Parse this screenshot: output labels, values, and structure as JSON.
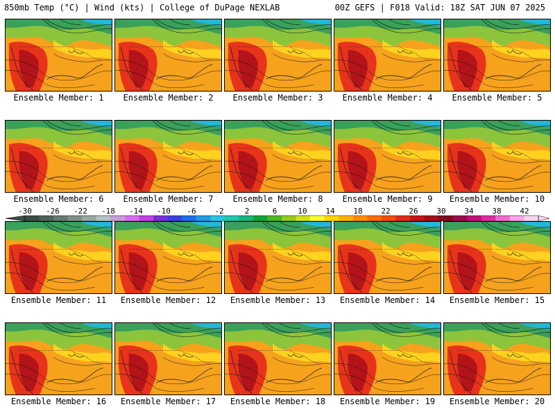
{
  "header": {
    "left": "850mb Temp (°C) | Wind (kts) | College of DuPage NEXLAB",
    "right": "00Z GEFS | F018 Valid: 18Z SAT JUN 07 2025"
  },
  "panels": [
    {
      "label": "Ensemble Member: 1"
    },
    {
      "label": "Ensemble Member: 2"
    },
    {
      "label": "Ensemble Member: 3"
    },
    {
      "label": "Ensemble Member: 4"
    },
    {
      "label": "Ensemble Member: 5"
    },
    {
      "label": "Ensemble Member: 6"
    },
    {
      "label": "Ensemble Member: 7"
    },
    {
      "label": "Ensemble Member: 8"
    },
    {
      "label": "Ensemble Member: 9"
    },
    {
      "label": "Ensemble Member: 10"
    },
    {
      "label": "Ensemble Member: 11"
    },
    {
      "label": "Ensemble Member: 12"
    },
    {
      "label": "Ensemble Member: 13"
    },
    {
      "label": "Ensemble Member: 14"
    },
    {
      "label": "Ensemble Member: 15"
    },
    {
      "label": "Ensemble Member: 16"
    },
    {
      "label": "Ensemble Member: 17"
    },
    {
      "label": "Ensemble Member: 18"
    },
    {
      "label": "Ensemble Member: 19"
    },
    {
      "label": "Ensemble Member: 20"
    }
  ],
  "colorbar": {
    "ticks": [
      "-30",
      "-26",
      "-22",
      "-18",
      "-14",
      "-10",
      "-6",
      "-2",
      "2",
      "6",
      "10",
      "14",
      "18",
      "22",
      "26",
      "30",
      "34",
      "38",
      "42"
    ],
    "colors": [
      "#3c4a41",
      "#53615a",
      "#6a7872",
      "#828e89",
      "#9ca7a3",
      "#b6c2c6",
      "#c79dd4",
      "#d86bf0",
      "#c33fe8",
      "#7a2fd6",
      "#3a3fdd",
      "#1f6de8",
      "#1f9be8",
      "#22c8e0",
      "#1fc9a8",
      "#16b77a",
      "#12a33c",
      "#4fb426",
      "#98c81e",
      "#d6dd1d",
      "#ffff33",
      "#ffd700",
      "#ffb300",
      "#ff8c00",
      "#ff6a00",
      "#f54a14",
      "#e02a18",
      "#c4151a",
      "#a10d1c",
      "#7e0b20",
      "#9a0a4d",
      "#c20e78",
      "#e02aa3",
      "#f06cd0",
      "#f7a6e6",
      "#fbd4f2"
    ]
  }
}
